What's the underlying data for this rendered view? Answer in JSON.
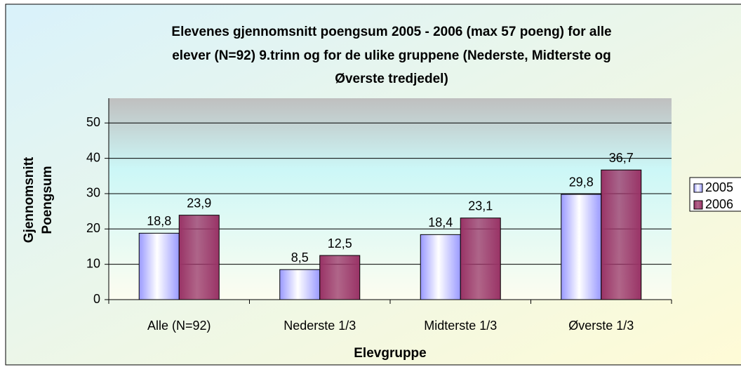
{
  "chart_data": {
    "type": "bar",
    "title": [
      "Elevenes gjennomsnitt poengsum 2005 - 2006 (max 57 poeng) for alle",
      "elever (N=92) 9.trinn og for de ulike gruppene (Nederste, Midterste og",
      "Øverste tredjedel)"
    ],
    "xlabel": "Elevgruppe",
    "ylabel": [
      "Gjennomsnitt",
      "Poengsum"
    ],
    "categories": [
      "Alle (N=92)",
      "Nederste 1/3",
      "Midterste 1/3",
      "Øverste 1/3"
    ],
    "series": [
      {
        "name": "2005",
        "color": "#9999ff",
        "values": [
          18.8,
          8.5,
          18.4,
          29.8
        ],
        "value_labels": [
          "18,8",
          "8,5",
          "18,4",
          "29,8"
        ]
      },
      {
        "name": "2006",
        "color": "#993366",
        "values": [
          23.9,
          12.5,
          23.1,
          36.7
        ],
        "value_labels": [
          "23,9",
          "12,5",
          "23,1",
          "36,7"
        ]
      }
    ],
    "ylim": [
      0,
      57
    ],
    "yticks": [
      0,
      10,
      20,
      30,
      40,
      50
    ],
    "legend": "right"
  }
}
